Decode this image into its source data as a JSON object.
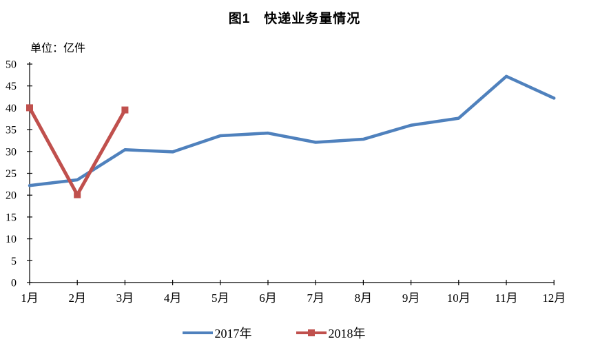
{
  "chart_data": {
    "type": "line",
    "title": "图1　快递业务量情况",
    "unit_label": "单位：亿件",
    "categories": [
      "1月",
      "2月",
      "3月",
      "4月",
      "5月",
      "6月",
      "7月",
      "8月",
      "9月",
      "10月",
      "11月",
      "12月"
    ],
    "series": [
      {
        "name": "2017年",
        "color": "#4F81BD",
        "marker": "none",
        "values": [
          22.2,
          23.5,
          30.4,
          29.9,
          33.6,
          34.2,
          32.1,
          32.8,
          36.0,
          37.6,
          47.2,
          42.2
        ]
      },
      {
        "name": "2018年",
        "color": "#C0504D",
        "marker": "square",
        "values": [
          40.0,
          20.1,
          39.5
        ]
      }
    ],
    "ylim": [
      0,
      50
    ],
    "ytick_step": 5,
    "grid": false,
    "legend_position": "bottom",
    "axis_color": "#000000"
  }
}
